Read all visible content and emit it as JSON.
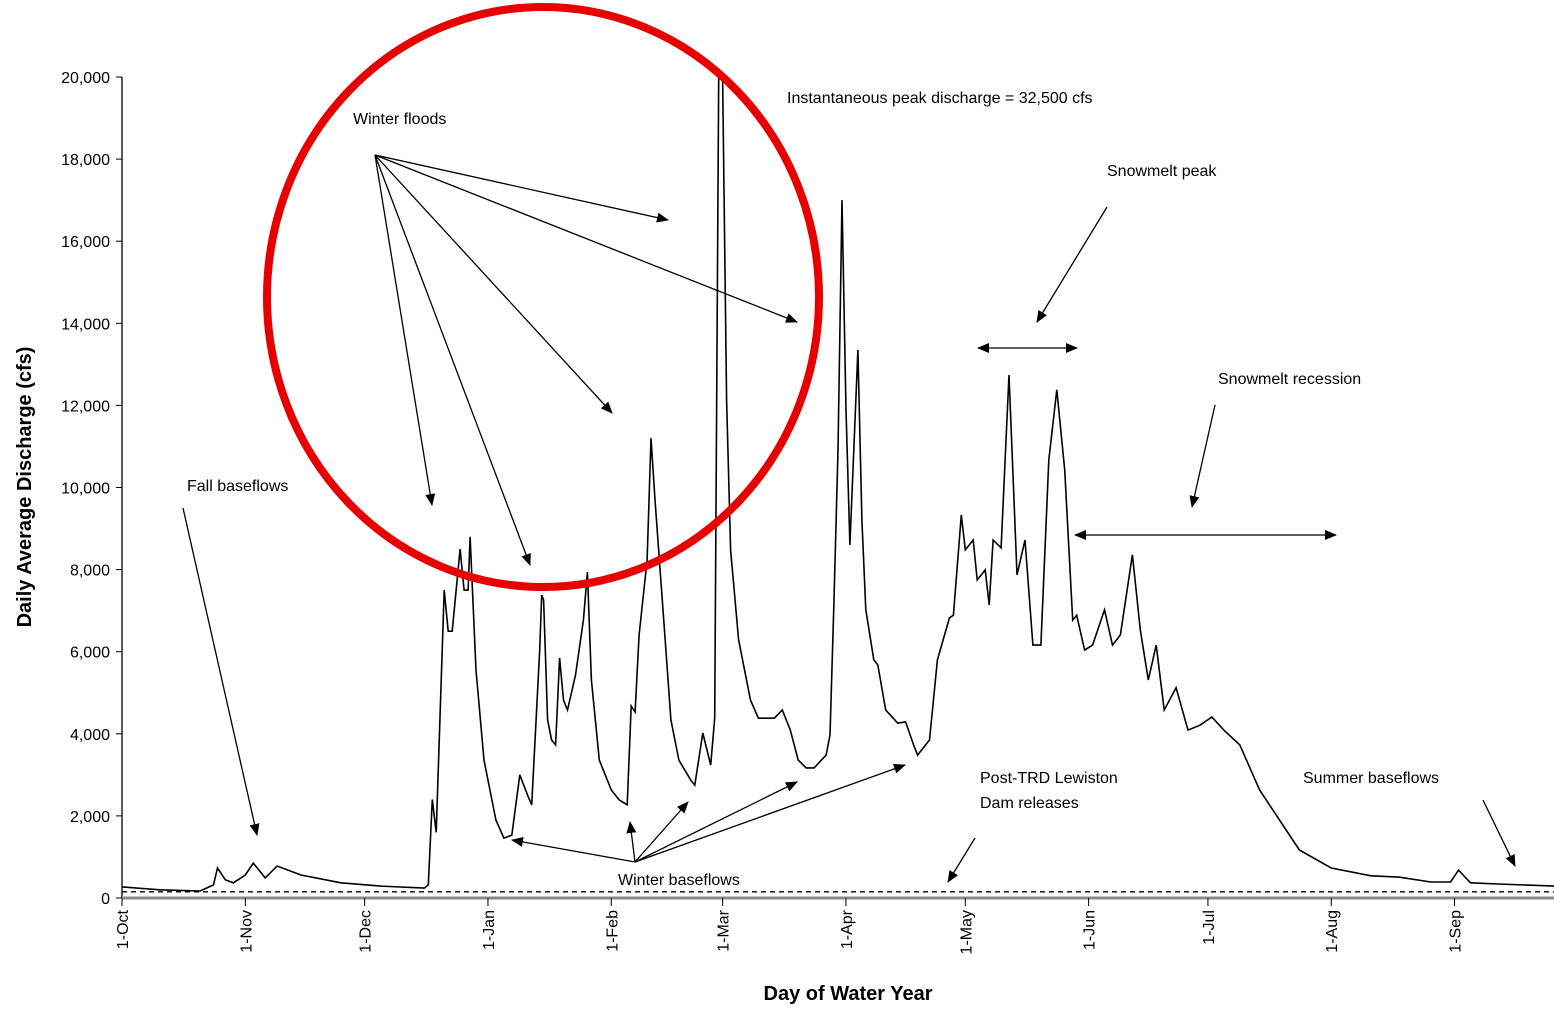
{
  "chart_data": {
    "type": "line",
    "xlabel": "Day of Water Year",
    "ylabel": "Daily Average Discharge (cfs)",
    "xlim": [
      0,
      360
    ],
    "ylim": [
      0,
      20000
    ],
    "xticks": [
      {
        "value": 0,
        "label": "1-Oct"
      },
      {
        "value": 31,
        "label": "1-Nov"
      },
      {
        "value": 61,
        "label": "1-Dec"
      },
      {
        "value": 92,
        "label": "1-Jan"
      },
      {
        "value": 123,
        "label": "1-Feb"
      },
      {
        "value": 151,
        "label": "1-Mar"
      },
      {
        "value": 182,
        "label": "1-Apr"
      },
      {
        "value": 212,
        "label": "1-May"
      },
      {
        "value": 243,
        "label": "1-Jun"
      },
      {
        "value": 273,
        "label": "1-Jul"
      },
      {
        "value": 304,
        "label": "1-Aug"
      },
      {
        "value": 335,
        "label": "1-Sep"
      }
    ],
    "yticks": [
      0,
      {
        "value": 2000,
        "label": "2,000"
      },
      {
        "value": 4000,
        "label": "4,000"
      },
      {
        "value": 6000,
        "label": "6,000"
      },
      {
        "value": 8000,
        "label": "8,000"
      },
      {
        "value": 10000,
        "label": "10,000"
      },
      {
        "value": 12000,
        "label": "12,000"
      },
      {
        "value": 14000,
        "label": "14,000"
      },
      {
        "value": 16000,
        "label": "16,000"
      },
      {
        "value": 18000,
        "label": "18,000"
      },
      {
        "value": 20000,
        "label": "20,000"
      }
    ],
    "series": [
      {
        "color": "#000000",
        "dash": false,
        "x": [
          0,
          9.5,
          19.6,
          23,
          24,
          26,
          28,
          31,
          33,
          36,
          39,
          45,
          55,
          65,
          76,
          77,
          78,
          79,
          81,
          82,
          83,
          85,
          86,
          87,
          87.5,
          89,
          91,
          94,
          96,
          98,
          100,
          102,
          103,
          105,
          105.5,
          106,
          107,
          108,
          109,
          110,
          111,
          112,
          114,
          116,
          117,
          118,
          120,
          123,
          125,
          127,
          128,
          129,
          130,
          132,
          133,
          134,
          136,
          138,
          140,
          143,
          144,
          146,
          148,
          149,
          150,
          151,
          152,
          153,
          155,
          158,
          160,
          164,
          166,
          168,
          170,
          172,
          174,
          177,
          178,
          179,
          180,
          181,
          182,
          183,
          185,
          186,
          187,
          189,
          190,
          192,
          195,
          197,
          199,
          200,
          203,
          205,
          208,
          209,
          211,
          212,
          214,
          215,
          217,
          218,
          219,
          221,
          223,
          225,
          227,
          229,
          231,
          233,
          235,
          237,
          239,
          240,
          242,
          244,
          247,
          249,
          251,
          254,
          256,
          258,
          260,
          262,
          265,
          268,
          271,
          274,
          277,
          281,
          286,
          291,
          296,
          304,
          314,
          321,
          329,
          334,
          336,
          339,
          346,
          360
        ],
        "values": [
          270,
          200,
          170,
          320,
          730,
          440,
          370,
          560,
          850,
          490,
          780,
          560,
          370,
          290,
          240,
          320,
          2400,
          1600,
          7500,
          6500,
          6500,
          8500,
          7500,
          7500,
          8800,
          5550,
          3360,
          1900,
          1460,
          1530,
          3000,
          2500,
          2270,
          6040,
          7380,
          7260,
          4340,
          3850,
          3730,
          5850,
          4820,
          4580,
          5430,
          6770,
          7940,
          5310,
          3360,
          2630,
          2390,
          2270,
          4680,
          4530,
          6410,
          8230,
          11200,
          9700,
          7020,
          4340,
          3360,
          2870,
          2750,
          4020,
          3240,
          4380,
          20000,
          20000,
          12130,
          8480,
          6290,
          4820,
          4380,
          4380,
          4580,
          4090,
          3360,
          3170,
          3170,
          3480,
          3970,
          7260,
          10910,
          17000,
          11890,
          8600,
          13350,
          9210,
          7020,
          5800,
          5680,
          4580,
          4260,
          4290,
          3730,
          3480,
          3850,
          5800,
          6820,
          6890,
          9330,
          8480,
          8720,
          7750,
          7990,
          7140,
          8720,
          8530,
          12740,
          7870,
          8720,
          6160,
          6160,
          10670,
          12380,
          10430,
          6770,
          6890,
          6040,
          6160,
          7020,
          6160,
          6410,
          8360,
          6530,
          5310,
          6160,
          4580,
          5120,
          4090,
          4210,
          4410,
          4090,
          3730,
          2630,
          1900,
          1170,
          730,
          540,
          510,
          390,
          390,
          680,
          370,
          340,
          290
        ]
      },
      {
        "color": "#000000",
        "dash": true,
        "x": [
          0,
          360
        ],
        "values": [
          150,
          150
        ]
      }
    ],
    "annotations": [
      "Instantaneous peak discharge = 32,500 cfs",
      "Winter floods",
      "Snowmelt peak",
      "Snowmelt recession",
      "Fall baseflows",
      "Post-TRD Lewiston",
      "Dam releases",
      "Summer baseflows",
      "Winter baseflows"
    ]
  }
}
